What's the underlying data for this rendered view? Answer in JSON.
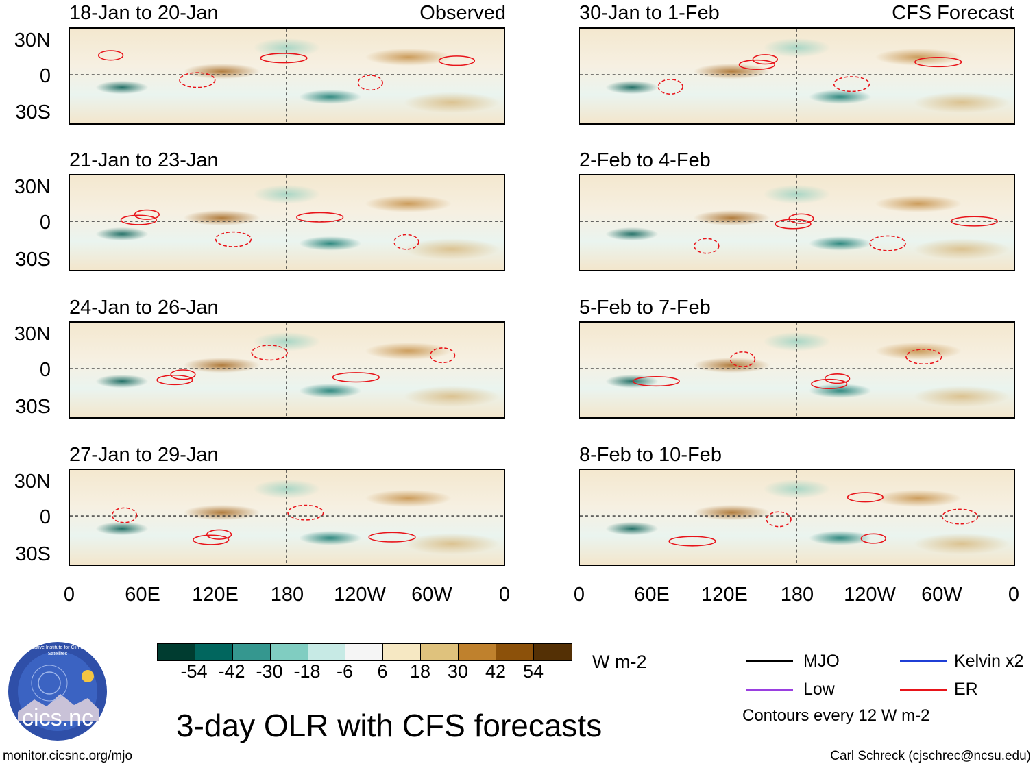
{
  "figure": {
    "main_title": "3-day OLR with CFS forecasts",
    "left_tag": "Observed",
    "right_tag": "CFS Forecast",
    "site": "monitor.cicsnc.org/mjo",
    "credit": "Carl Schreck (cjschrec@ncsu.edu)",
    "logo_text": "cics.nc",
    "logo_ring_text": "Cooperative Institute for Climate and Satellites"
  },
  "panels": [
    {
      "title": "18-Jan to 20-Jan",
      "source": "Observed"
    },
    {
      "title": "21-Jan to 23-Jan",
      "source": "Observed"
    },
    {
      "title": "24-Jan to 26-Jan",
      "source": "Observed"
    },
    {
      "title": "27-Jan to 29-Jan",
      "source": "Observed"
    },
    {
      "title": "30-Jan to 1-Feb",
      "source": "CFS Forecast"
    },
    {
      "title": "2-Feb to 4-Feb",
      "source": "CFS Forecast"
    },
    {
      "title": "5-Feb to 7-Feb",
      "source": "CFS Forecast"
    },
    {
      "title": "8-Feb to 10-Feb",
      "source": "CFS Forecast"
    }
  ],
  "axes": {
    "lat_ticks": [
      "30N",
      "0",
      "30S"
    ],
    "lon_ticks": [
      "0",
      "60E",
      "120E",
      "180",
      "120W",
      "60W",
      "0"
    ]
  },
  "colorbar": {
    "units": "W m-2",
    "tick_labels": [
      "-54",
      "-42",
      "-30",
      "-18",
      "-6",
      "6",
      "18",
      "30",
      "42",
      "54"
    ],
    "colors": [
      "#003c30",
      "#01665e",
      "#35978f",
      "#80cdc1",
      "#c7eae5",
      "#f5f5f5",
      "#f6e8c3",
      "#dfc27d",
      "#bf812d",
      "#8c510a",
      "#543005"
    ]
  },
  "legend": {
    "items": [
      {
        "label": "MJO",
        "color": "#000000"
      },
      {
        "label": "Kelvin x2",
        "color": "#1f3fd6"
      },
      {
        "label": "Low",
        "color": "#9a3fe0"
      },
      {
        "label": "ER",
        "color": "#e8141a"
      }
    ],
    "contour_note": "Contours every 12 W m-2"
  }
}
